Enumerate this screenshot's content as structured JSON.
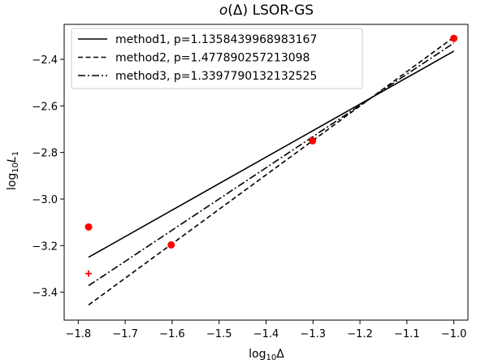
{
  "chart_data": {
    "type": "line",
    "title_parts": {
      "italic": "o",
      "rest": "(Δ) LSOR-GS"
    },
    "xlabel_parts": {
      "base": "log",
      "sub": "10",
      "tail": "Δ"
    },
    "ylabel_parts": {
      "base": "log",
      "sub": "10",
      "var": "L",
      "varsub": "1"
    },
    "xlim": [
      -1.83,
      -0.97
    ],
    "ylim": [
      -3.52,
      -2.25
    ],
    "xticks": [
      -1.8,
      -1.7,
      -1.6,
      -1.5,
      -1.4,
      -1.3,
      -1.2,
      -1.1,
      -1.0
    ],
    "xtick_labels": [
      "−1.8",
      "−1.7",
      "−1.6",
      "−1.5",
      "−1.4",
      "−1.3",
      "−1.2",
      "−1.1",
      "−1.0"
    ],
    "yticks": [
      -3.4,
      -3.2,
      -3.0,
      -2.8,
      -2.6,
      -2.4
    ],
    "ytick_labels": [
      "−3.4",
      "−3.2",
      "−3.0",
      "−2.8",
      "−2.6",
      "−2.4"
    ],
    "series": [
      {
        "name": "method1, p=1.1358439968983167",
        "style": "solid",
        "x": [
          -1.778,
          -1.0
        ],
        "y": [
          -3.25,
          -2.365
        ]
      },
      {
        "name": "method2, p=1.477890257213098",
        "style": "dashed",
        "x": [
          -1.778,
          -1.0
        ],
        "y": [
          -3.455,
          -2.305
        ]
      },
      {
        "name": "method3, p=1.3397790132132525",
        "style": "dashdot",
        "x": [
          -1.778,
          -1.0
        ],
        "y": [
          -3.372,
          -2.33
        ]
      }
    ],
    "points": [
      {
        "x": -1.778,
        "y": -3.12,
        "marker": "circle"
      },
      {
        "x": -1.602,
        "y": -3.197,
        "marker": "circle"
      },
      {
        "x": -1.301,
        "y": -2.75,
        "marker": "circle"
      },
      {
        "x": -1.0,
        "y": -2.31,
        "marker": "circle"
      },
      {
        "x": -1.778,
        "y": -3.32,
        "marker": "plus"
      }
    ],
    "point_color": "#ff0000",
    "line_color": "#000000",
    "legend_position": "upper-left",
    "grid": false
  }
}
